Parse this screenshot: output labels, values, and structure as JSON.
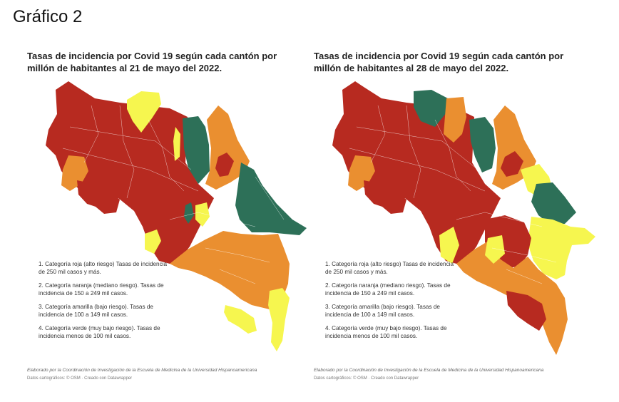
{
  "page": {
    "title": "Gráfico 2"
  },
  "colors": {
    "red": "#b72a20",
    "orange": "#ea8f30",
    "yellow": "#f6f64f",
    "green": "#2d7058"
  },
  "legend": [
    {
      "category": "roja",
      "color": "red",
      "text": "1. Categoría roja (alto riesgo) Tasas de incidencia de 250 mil casos y más."
    },
    {
      "category": "naranja",
      "color": "orange",
      "text": "2. Categoría naranja (mediano riesgo). Tasas de incidencia de 150 a 249 mil casos."
    },
    {
      "category": "amarilla",
      "color": "yellow",
      "text": "3. Categoría amarilla (bajo riesgo). Tasas de incidencia de 100 a 149 mil casos."
    },
    {
      "category": "verde",
      "color": "green",
      "text": "4. Categoría verde (muy bajo riesgo). Tasas de incidencia menos de 100 mil casos."
    }
  ],
  "maps": [
    {
      "title": "Tasas de incidencia por Covid 19 según cada cantón por millón de habitantes al 21 de mayo del 2022.",
      "credit": "Elaborado por la Coordinación de Investigación de la Escuela de Medicina de la Universidad Hispanoamericana",
      "data_source": "Datos cartográficos: © OSM · Creado con Datawrapper"
    },
    {
      "title": "Tasas de incidencia por Covid 19 según cada cantón por millón de habitantes al 28 de mayo del 2022.",
      "credit": "Elaborado por la Coordinación de Investigación de la Escuela de Medicina de la Universidad Hispanoamericana",
      "data_source": "Datos cartográficos: © OSM · Creado con Datawrapper"
    }
  ]
}
